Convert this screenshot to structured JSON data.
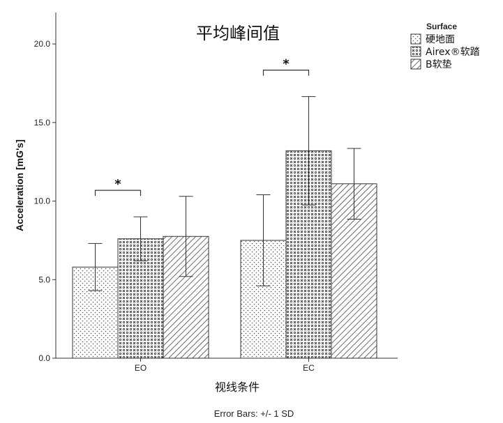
{
  "chart_data": {
    "type": "bar",
    "title": "平均峰间值",
    "xlabel": "视线条件",
    "ylabel": "Acceleration [mG's]",
    "categories": [
      "EO",
      "EC"
    ],
    "yticks": [
      "0.0",
      "5.0",
      "10.0",
      "15.0",
      "20.0"
    ],
    "ylim": [
      0,
      22
    ],
    "legend": {
      "title": "Surface",
      "placement": "top-right"
    },
    "series": [
      {
        "name": "硬地面",
        "pattern": "dots",
        "values": [
          5.8,
          7.5
        ],
        "error": [
          1.5,
          2.9
        ]
      },
      {
        "name": "Airex®软踏",
        "pattern": "crosses",
        "values": [
          7.6,
          13.2
        ],
        "error": [
          1.4,
          3.45
        ]
      },
      {
        "name": "B软垫",
        "pattern": "diagonal",
        "values": [
          7.75,
          11.1
        ],
        "error": [
          2.55,
          2.25
        ]
      }
    ],
    "annotations": [
      {
        "text": "*",
        "category": "EO",
        "between": [
          0,
          1
        ]
      },
      {
        "text": "*",
        "category": "EC",
        "between": [
          0,
          1
        ]
      }
    ],
    "footnote": "Error Bars: +/- 1 SD"
  },
  "colors": {
    "bar_fill": "#ffffff",
    "ink": "#333333"
  }
}
